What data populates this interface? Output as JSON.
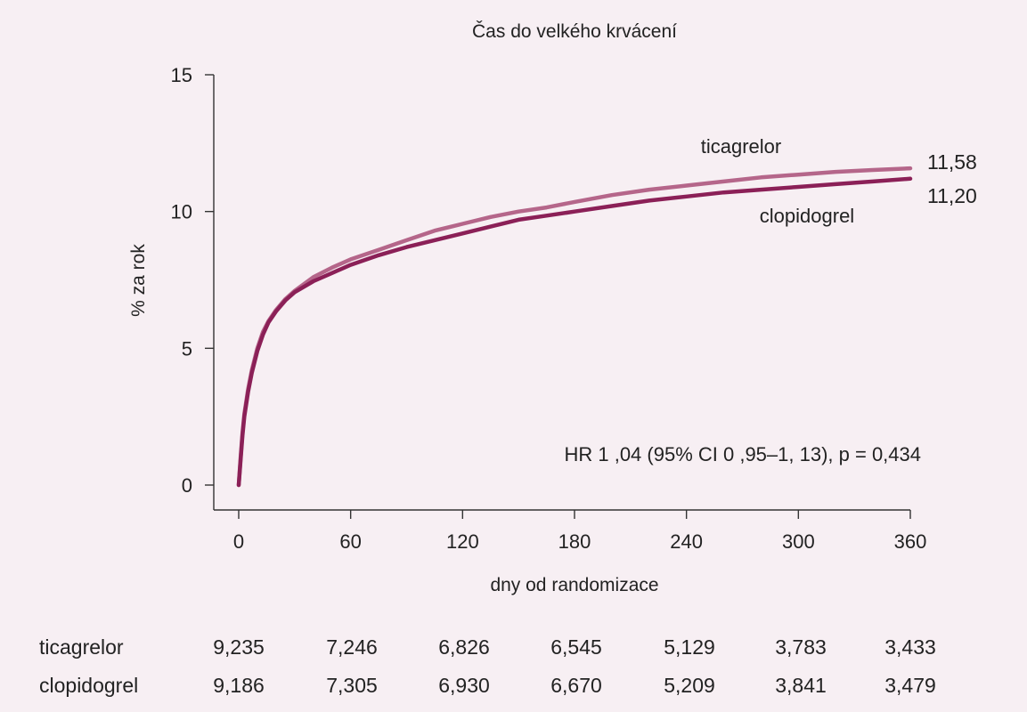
{
  "chart_data": {
    "type": "line",
    "title": "Čas do velkého krvácení",
    "xlabel": "dny od randomizace",
    "ylabel": "% za rok",
    "xlim": [
      0,
      360
    ],
    "ylim": [
      0,
      15
    ],
    "xticks": [
      0,
      60,
      120,
      180,
      240,
      300,
      360
    ],
    "yticks": [
      0,
      5,
      10,
      15
    ],
    "grid": false,
    "series": [
      {
        "name": "ticagrelor",
        "color": "#b5668a",
        "end_label": "11,58",
        "x": [
          0,
          1,
          2,
          3,
          5,
          7,
          10,
          13,
          16,
          20,
          25,
          30,
          40,
          50,
          60,
          75,
          90,
          105,
          120,
          135,
          150,
          165,
          180,
          200,
          220,
          240,
          260,
          280,
          300,
          320,
          340,
          360
        ],
        "y": [
          0,
          1.0,
          1.9,
          2.6,
          3.5,
          4.2,
          5.0,
          5.6,
          6.0,
          6.4,
          6.8,
          7.1,
          7.6,
          7.95,
          8.25,
          8.6,
          8.95,
          9.3,
          9.55,
          9.8,
          10.0,
          10.15,
          10.35,
          10.6,
          10.8,
          10.95,
          11.1,
          11.25,
          11.35,
          11.45,
          11.52,
          11.58
        ]
      },
      {
        "name": "clopidogrel",
        "color": "#8b2057",
        "end_label": "11,20",
        "x": [
          0,
          1,
          2,
          3,
          5,
          7,
          10,
          13,
          16,
          20,
          25,
          30,
          40,
          50,
          60,
          75,
          90,
          105,
          120,
          135,
          150,
          165,
          180,
          200,
          220,
          240,
          260,
          280,
          300,
          320,
          340,
          360
        ],
        "y": [
          0,
          0.9,
          1.8,
          2.5,
          3.4,
          4.1,
          4.9,
          5.5,
          5.95,
          6.35,
          6.75,
          7.05,
          7.45,
          7.75,
          8.05,
          8.4,
          8.7,
          8.95,
          9.2,
          9.45,
          9.7,
          9.85,
          10.0,
          10.2,
          10.4,
          10.55,
          10.7,
          10.8,
          10.9,
          11.0,
          11.1,
          11.2
        ]
      }
    ],
    "annotation": "HR 1 ,04 (95% CI 0   ,95–1, 13), p   = 0,434"
  },
  "risk_table": {
    "rows": [
      {
        "name": "ticagrelor",
        "values": [
          "9,235",
          "7,246",
          "6,826",
          "6,545",
          "5,129",
          "3,783",
          "3,433"
        ]
      },
      {
        "name": "clopidogrel",
        "values": [
          "9,186",
          "7,305",
          "6,930",
          "6,670",
          "5,209",
          "3,841",
          "3,479"
        ]
      }
    ]
  }
}
